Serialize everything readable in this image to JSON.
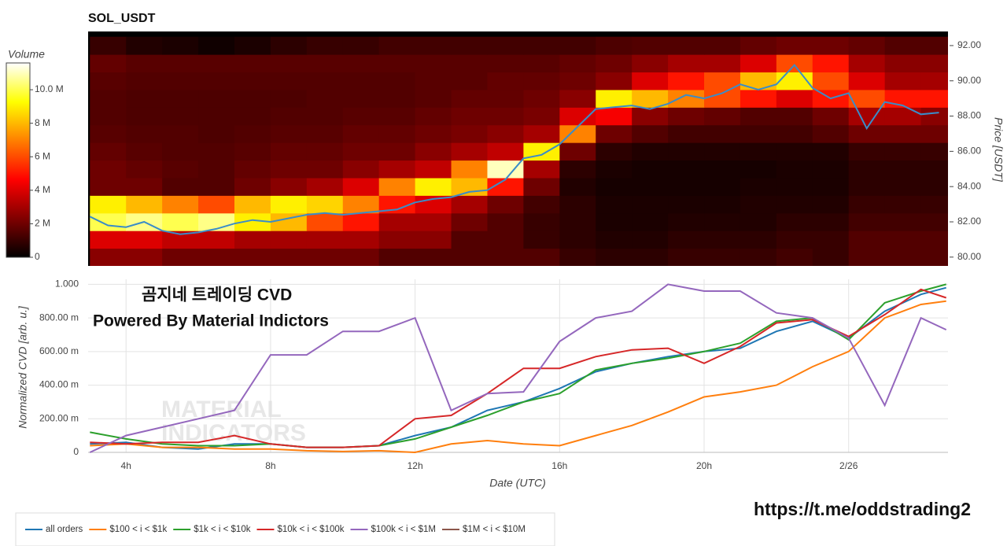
{
  "link": "https://t.me/oddstrading2",
  "chart_data": [
    {
      "type": "heatmap",
      "title": "SOL_USDT",
      "colorbar_title": "Volume",
      "colorscale": "hot",
      "zlim": [
        0,
        11.6
      ],
      "zticks": [
        {
          "value": 0,
          "label": "0"
        },
        {
          "value": 2,
          "label": "2 M"
        },
        {
          "value": 4,
          "label": "4 M"
        },
        {
          "value": 6,
          "label": "6 M"
        },
        {
          "value": 8,
          "label": "8 M"
        },
        {
          "value": 10,
          "label": "10.0 M"
        }
      ],
      "y_label": "Price [USDT]",
      "xlim": [
        2.95,
        26.75
      ],
      "ylim": [
        79.5,
        92.8
      ],
      "yticks": [
        {
          "value": 80,
          "label": "80.00"
        },
        {
          "value": 82,
          "label": "82.00"
        },
        {
          "value": 84,
          "label": "84.00"
        },
        {
          "value": 86,
          "label": "86.00"
        },
        {
          "value": 88,
          "label": "88.00"
        },
        {
          "value": 90,
          "label": "90.00"
        },
        {
          "value": 92,
          "label": "92.00"
        }
      ],
      "x_bins": [
        3,
        4,
        5,
        6,
        7,
        8,
        9,
        10,
        11,
        12,
        13,
        14,
        15,
        16,
        17,
        18,
        19,
        20,
        21,
        22,
        23,
        24,
        25,
        26,
        26.75
      ],
      "y_bins": [
        79.5,
        80.5,
        81.5,
        82.5,
        83.5,
        84.5,
        85.5,
        86.5,
        87.5,
        88.5,
        89.5,
        90.5,
        91.5,
        92.5
      ],
      "z": [
        [
          2.5,
          2.5,
          2,
          2,
          2,
          2,
          2,
          2,
          1.5,
          1.5,
          1.5,
          1.5,
          1.5,
          1,
          0.8,
          0.8,
          1,
          1,
          1,
          1.2,
          1,
          1.5,
          1.5,
          1.5
        ],
        [
          4,
          4,
          3.5,
          3.5,
          3,
          3,
          3,
          3,
          2.5,
          2.5,
          1.5,
          1.5,
          1,
          0.8,
          0.6,
          0.6,
          0.8,
          0.8,
          0.8,
          1,
          1,
          1.5,
          1.5,
          1.5
        ],
        [
          10,
          10.5,
          10,
          10.5,
          9,
          8,
          6,
          5,
          3,
          3,
          2,
          1.5,
          1,
          0.8,
          0.5,
          0.5,
          0.6,
          0.6,
          0.6,
          0.8,
          0.8,
          1.2,
          1.2,
          1.2
        ],
        [
          9,
          8,
          7,
          6,
          8,
          9,
          8.5,
          7,
          5,
          4,
          3,
          2,
          1.2,
          0.8,
          0.5,
          0.5,
          0.5,
          0.5,
          0.6,
          0.6,
          0.6,
          1,
          1,
          1
        ],
        [
          2,
          2,
          1.5,
          1.5,
          2,
          2.5,
          3,
          4,
          7,
          9,
          8,
          5,
          2,
          0.6,
          0.4,
          0.4,
          0.4,
          0.4,
          0.5,
          0.5,
          0.5,
          0.8,
          0.8,
          0.8
        ],
        [
          2,
          1.8,
          1.6,
          1.5,
          1.8,
          2,
          2,
          2.5,
          3,
          3.5,
          7,
          11,
          3,
          0.8,
          0.5,
          0.4,
          0.4,
          0.4,
          0.4,
          0.5,
          0.5,
          0.8,
          0.8,
          0.8
        ],
        [
          1.8,
          1.6,
          1.5,
          1.5,
          1.6,
          1.8,
          1.8,
          2,
          2,
          2.5,
          3,
          3.5,
          9,
          2,
          0.8,
          0.6,
          0.6,
          0.6,
          0.6,
          0.6,
          0.6,
          1,
          1,
          1
        ],
        [
          1.6,
          1.5,
          1.5,
          1.4,
          1.5,
          1.6,
          1.6,
          1.8,
          1.8,
          2,
          2.2,
          2.5,
          3,
          7,
          2,
          1.5,
          1.2,
          1.2,
          1.2,
          1.2,
          1.5,
          2,
          2,
          2
        ],
        [
          1.5,
          1.4,
          1.4,
          1.4,
          1.4,
          1.5,
          1.5,
          1.6,
          1.6,
          1.8,
          2,
          2,
          2.2,
          4,
          4.5,
          2.5,
          2,
          1.8,
          1.5,
          1.5,
          2,
          3,
          3,
          2.5
        ],
        [
          1.5,
          1.4,
          1.4,
          1.4,
          1.4,
          1.4,
          1.5,
          1.5,
          1.5,
          1.6,
          1.8,
          1.8,
          2,
          2.5,
          9,
          8,
          7,
          6,
          5,
          4,
          5,
          6,
          5,
          5
        ],
        [
          1.6,
          1.5,
          1.5,
          1.5,
          1.5,
          1.5,
          1.5,
          1.5,
          1.5,
          1.6,
          1.6,
          1.8,
          1.8,
          2,
          2.5,
          4,
          5,
          6,
          8,
          9,
          6,
          4,
          3,
          3
        ],
        [
          1.8,
          1.6,
          1.6,
          1.6,
          1.6,
          1.6,
          1.6,
          1.6,
          1.6,
          1.6,
          1.6,
          1.6,
          1.6,
          1.8,
          2,
          2.5,
          3,
          3,
          4,
          6,
          5,
          3,
          2.5,
          2.5
        ],
        [
          1,
          0.6,
          0.5,
          0.3,
          0.5,
          0.8,
          1,
          1,
          1.2,
          1.2,
          1.2,
          1.2,
          1.2,
          1.2,
          1.4,
          1.5,
          1.5,
          1.5,
          1.8,
          2,
          2,
          1.8,
          1.5,
          1.5
        ]
      ],
      "price": {
        "color": "#3a8cc8",
        "x": [
          3,
          3.5,
          4,
          4.5,
          5,
          5.5,
          6,
          6.5,
          7,
          7.5,
          8,
          8.5,
          9,
          9.5,
          10,
          10.5,
          11,
          11.5,
          12,
          12.5,
          13,
          13.5,
          14,
          14.5,
          15,
          15.5,
          16,
          16.5,
          17,
          17.5,
          18,
          18.5,
          19,
          19.5,
          20,
          20.5,
          21,
          21.5,
          22,
          22.5,
          23,
          23.5,
          24,
          24.5,
          25,
          25.5,
          26,
          26.5
        ],
        "values": [
          82.3,
          81.8,
          81.7,
          82,
          81.5,
          81.3,
          81.4,
          81.6,
          81.9,
          82.1,
          82,
          82.2,
          82.4,
          82.5,
          82.4,
          82.5,
          82.6,
          82.7,
          83.1,
          83.3,
          83.4,
          83.7,
          83.8,
          84.4,
          85.6,
          85.8,
          86.4,
          87.4,
          88.4,
          88.5,
          88.6,
          88.4,
          88.7,
          89.2,
          89,
          89.3,
          89.8,
          89.5,
          89.8,
          90.9,
          89.6,
          89,
          89.3,
          87.3,
          88.8,
          88.6,
          88.1,
          88.2
        ]
      }
    },
    {
      "type": "line",
      "x_label": "Date (UTC)",
      "y_label": "Normalized CVD [arb. u.]",
      "annotations": [
        "곰지네 트레이딩 CVD",
        "Powered By Material Indictors"
      ],
      "watermark": [
        "MATERIAL",
        "INDICATORS"
      ],
      "grid": true,
      "xlim": [
        2.95,
        26.75
      ],
      "ylim": [
        0,
        1.03
      ],
      "xticks": [
        {
          "value": 4,
          "label": "4h"
        },
        {
          "value": 8,
          "label": "8h"
        },
        {
          "value": 12,
          "label": "12h"
        },
        {
          "value": 16,
          "label": "16h"
        },
        {
          "value": 20,
          "label": "20h"
        },
        {
          "value": 24,
          "label": "2/26"
        }
      ],
      "yticks": [
        {
          "value": 0,
          "label": "0"
        },
        {
          "value": 0.2,
          "label": "200.00 m"
        },
        {
          "value": 0.4,
          "label": "400.00 m"
        },
        {
          "value": 0.6,
          "label": "600.00 m"
        },
        {
          "value": 0.8,
          "label": "800.00 m"
        },
        {
          "value": 1,
          "label": "1.000"
        }
      ],
      "x": [
        3,
        4,
        5,
        6,
        7,
        8,
        9,
        10,
        11,
        12,
        13,
        14,
        15,
        16,
        17,
        18,
        19,
        20,
        21,
        22,
        23,
        24,
        25,
        26,
        26.7
      ],
      "series": [
        {
          "name": "all orders",
          "color": "#1f77b4",
          "values": [
            0.05,
            0.06,
            0.03,
            0.02,
            0.05,
            0.05,
            0.03,
            0.03,
            0.04,
            0.1,
            0.15,
            0.25,
            0.3,
            0.38,
            0.48,
            0.53,
            0.57,
            0.6,
            0.62,
            0.72,
            0.78,
            0.68,
            0.84,
            0.94,
            0.98
          ]
        },
        {
          "name": "$100 < i < $1k",
          "color": "#ff7f0e",
          "values": [
            0.04,
            0.05,
            0.03,
            0.03,
            0.02,
            0.02,
            0.01,
            0.005,
            0.01,
            0,
            0.05,
            0.07,
            0.05,
            0.04,
            0.1,
            0.16,
            0.24,
            0.33,
            0.36,
            0.4,
            0.51,
            0.6,
            0.8,
            0.88,
            0.9
          ]
        },
        {
          "name": "$1k < i < $10k",
          "color": "#2ca02c",
          "values": [
            0.12,
            0.08,
            0.05,
            0.04,
            0.04,
            0.05,
            0.03,
            0.03,
            0.04,
            0.08,
            0.15,
            0.22,
            0.3,
            0.35,
            0.49,
            0.53,
            0.56,
            0.6,
            0.65,
            0.78,
            0.8,
            0.67,
            0.89,
            0.96,
            1
          ]
        },
        {
          "name": "$10k < i < $100k",
          "color": "#d62728",
          "values": [
            0.06,
            0.05,
            0.06,
            0.06,
            0.1,
            0.05,
            0.03,
            0.03,
            0.04,
            0.2,
            0.22,
            0.35,
            0.5,
            0.5,
            0.57,
            0.61,
            0.62,
            0.53,
            0.63,
            0.77,
            0.79,
            0.69,
            0.82,
            0.97,
            0.92
          ]
        },
        {
          "name": "$100k < i < $1M",
          "color": "#9467bd",
          "values": [
            0,
            0.1,
            0.15,
            0.2,
            0.25,
            0.58,
            0.58,
            0.72,
            0.72,
            0.8,
            0.25,
            0.35,
            0.36,
            0.66,
            0.8,
            0.84,
            1,
            0.96,
            0.96,
            0.83,
            0.8,
            0.68,
            0.28,
            0.8,
            0.73
          ]
        },
        {
          "name": "$1M < i < $10M",
          "color": "#8c564b",
          "values": [
            null,
            null,
            null,
            null,
            null,
            null,
            null,
            null,
            null,
            null,
            null,
            null,
            null,
            null,
            null,
            null,
            null,
            null,
            null,
            null,
            null,
            null,
            null,
            null,
            null
          ]
        }
      ]
    }
  ]
}
